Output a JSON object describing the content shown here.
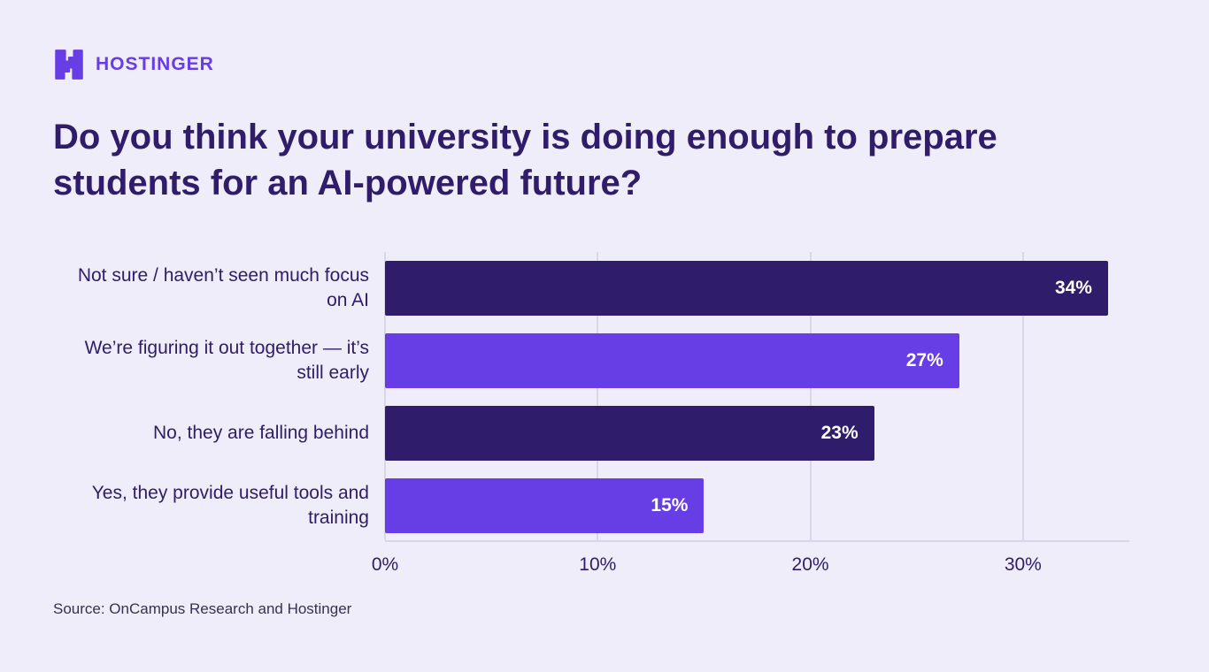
{
  "page": {
    "logo_text": "HOSTINGER",
    "title": "Do you think your university is doing enough to prepare students for an AI-powered future?",
    "source": "Source: OnCampus Research and Hostinger"
  },
  "colors": {
    "background": "#efedf9",
    "dark_purple": "#2f1c6a",
    "bright_purple": "#673de6",
    "gridline": "#d9d6ea",
    "value_text": "#ffffff"
  },
  "chart_data": {
    "type": "bar",
    "orientation": "horizontal",
    "title": "Do you think your university is doing enough to prepare students for an AI-powered future?",
    "categories": [
      "Not sure / haven’t seen much focus on AI",
      "We’re figuring it out together — it’s still early",
      "No, they are falling behind",
      "Yes, they provide useful tools and training"
    ],
    "values": [
      34,
      27,
      23,
      15
    ],
    "value_labels": [
      "34%",
      "27%",
      "23%",
      "15%"
    ],
    "bar_colors": [
      "#2f1c6a",
      "#673de6",
      "#2f1c6a",
      "#673de6"
    ],
    "x_ticks": [
      "0%",
      "10%",
      "20%",
      "30%"
    ],
    "x_tick_values": [
      0,
      10,
      20,
      30
    ],
    "xlim": [
      0,
      35
    ],
    "xlabel": "",
    "ylabel": "",
    "grid": "vertical",
    "legend": "none",
    "source": "Source: OnCampus Research and Hostinger"
  }
}
